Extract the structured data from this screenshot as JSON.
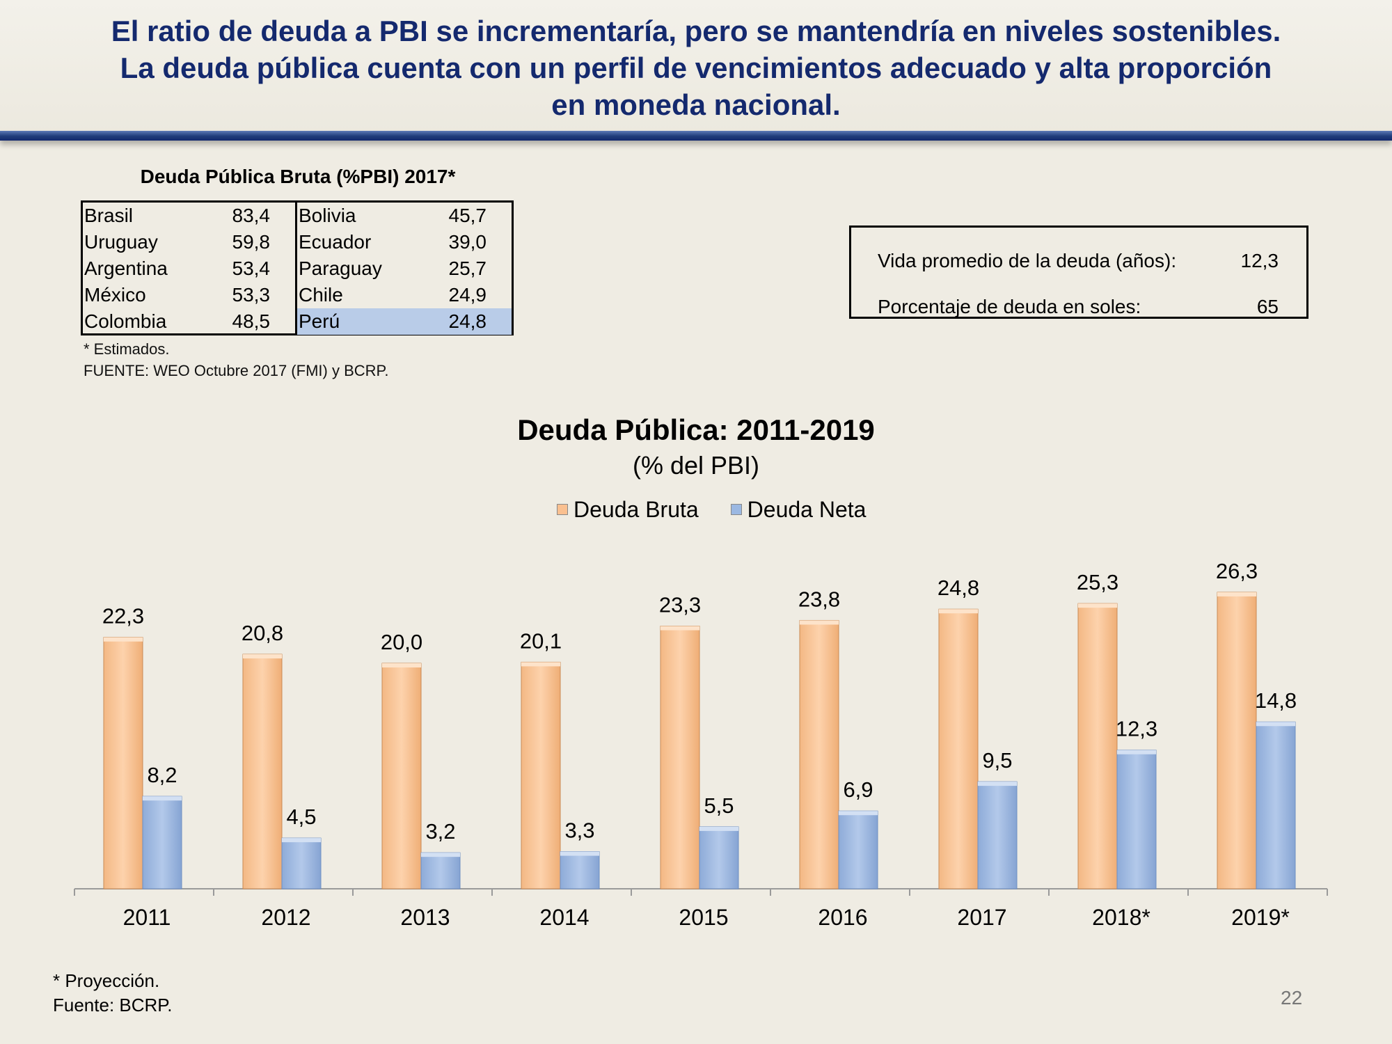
{
  "header": {
    "lines": [
      "El ratio de deuda a PBI se incrementaría, pero se mantendría en niveles sostenibles.",
      "La deuda pública cuenta con un perfil de vencimientos adecuado y alta proporción",
      "en moneda nacional."
    ]
  },
  "debt_table": {
    "title": "Deuda Pública Bruta (%PBI) 2017*",
    "left": [
      {
        "country": "Brasil",
        "value": "83,4"
      },
      {
        "country": "Uruguay",
        "value": "59,8"
      },
      {
        "country": "Argentina",
        "value": "53,4"
      },
      {
        "country": "México",
        "value": "53,3"
      },
      {
        "country": "Colombia",
        "value": "48,5"
      }
    ],
    "right": [
      {
        "country": "Bolivia",
        "value": "45,7"
      },
      {
        "country": "Ecuador",
        "value": "39,0"
      },
      {
        "country": "Paraguay",
        "value": "25,7"
      },
      {
        "country": "Chile",
        "value": "24,9"
      },
      {
        "country": "Perú",
        "value": "24,8"
      }
    ],
    "highlight_color": "#b9cce8",
    "note_estimated": "* Estimados.",
    "source": "FUENTE: WEO Octubre 2017 (FMI) y BCRP."
  },
  "info_box": {
    "avg_life_label": "Vida promedio de la deuda (años):",
    "avg_life_value": "12,3",
    "soles_label": "Porcentaje de deuda en soles:",
    "soles_value": "65"
  },
  "chart_data": {
    "type": "bar",
    "title": "Deuda Pública: 2011-2019",
    "subtitle": "(% del PBI)",
    "categories": [
      "2011",
      "2012",
      "2013",
      "2014",
      "2015",
      "2016",
      "2017",
      "2018*",
      "2019*"
    ],
    "series": [
      {
        "name": "Deuda Bruta",
        "color": "#fac090",
        "values": [
          22.3,
          20.8,
          20.0,
          20.1,
          23.3,
          23.8,
          24.8,
          25.3,
          26.3
        ]
      },
      {
        "name": "Deuda Neta",
        "color": "#9bb8e2",
        "values": [
          8.2,
          4.5,
          3.2,
          3.3,
          5.5,
          6.9,
          9.5,
          12.3,
          14.8
        ]
      }
    ],
    "data_labels": {
      "Deuda Bruta": [
        "22,3",
        "20,8",
        "20,0",
        "20,1",
        "23,3",
        "23,8",
        "24,8",
        "25,3",
        "26,3"
      ],
      "Deuda Neta": [
        "8,2",
        "4,5",
        "3,2",
        "3,3",
        "5,5",
        "6,9",
        "9,5",
        "12,3",
        "14,8"
      ]
    },
    "legend_position": "top",
    "grid": false
  },
  "footer": {
    "projection_note": "* Proyección.",
    "source": "Fuente: BCRP.",
    "page_number": "22"
  }
}
